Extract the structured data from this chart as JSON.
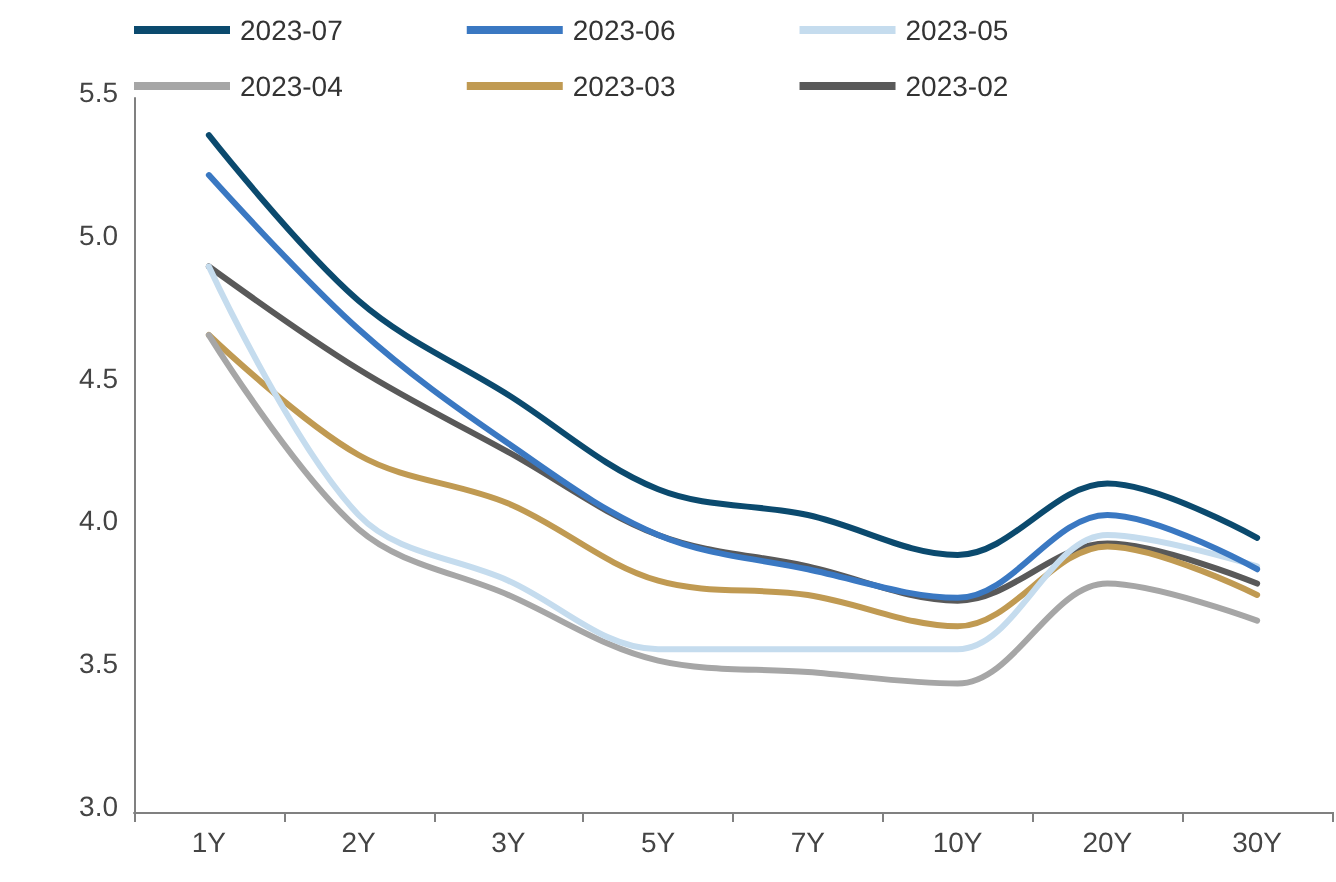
{
  "chart_data": {
    "type": "line",
    "categories": [
      "1Y",
      "2Y",
      "3Y",
      "5Y",
      "7Y",
      "10Y",
      "20Y",
      "30Y"
    ],
    "series": [
      {
        "name": "2023-07",
        "color": "#0b4a6e",
        "values": [
          5.37,
          4.79,
          4.46,
          4.13,
          4.04,
          3.9,
          4.15,
          3.96
        ]
      },
      {
        "name": "2023-06",
        "color": "#3a78c2",
        "values": [
          5.23,
          4.69,
          4.29,
          3.97,
          3.85,
          3.75,
          4.04,
          3.85
        ]
      },
      {
        "name": "2023-05",
        "color": "#c5dcee",
        "values": [
          4.91,
          4.04,
          3.81,
          3.57,
          3.57,
          3.57,
          3.97,
          3.86
        ]
      },
      {
        "name": "2023-04",
        "color": "#a6a6a6",
        "values": [
          4.67,
          3.99,
          3.76,
          3.53,
          3.49,
          3.45,
          3.8,
          3.67
        ]
      },
      {
        "name": "2023-03",
        "color": "#c09a52",
        "values": [
          4.67,
          4.25,
          4.08,
          3.81,
          3.76,
          3.65,
          3.93,
          3.76
        ]
      },
      {
        "name": "2023-02",
        "color": "#595959",
        "values": [
          4.91,
          4.55,
          4.26,
          3.97,
          3.86,
          3.74,
          3.94,
          3.8
        ]
      }
    ],
    "ylim": [
      3.0,
      5.5
    ],
    "yticks": [
      {
        "value": 3.0,
        "label": "3.0"
      },
      {
        "value": 3.5,
        "label": "3.5"
      },
      {
        "value": 4.0,
        "label": "4.0"
      },
      {
        "value": 4.5,
        "label": "4.5"
      },
      {
        "value": 5.0,
        "label": "5.0"
      },
      {
        "value": 5.5,
        "label": "5.5"
      }
    ],
    "grid": false,
    "legend": "top",
    "marker": "none",
    "line_style": "solid"
  }
}
